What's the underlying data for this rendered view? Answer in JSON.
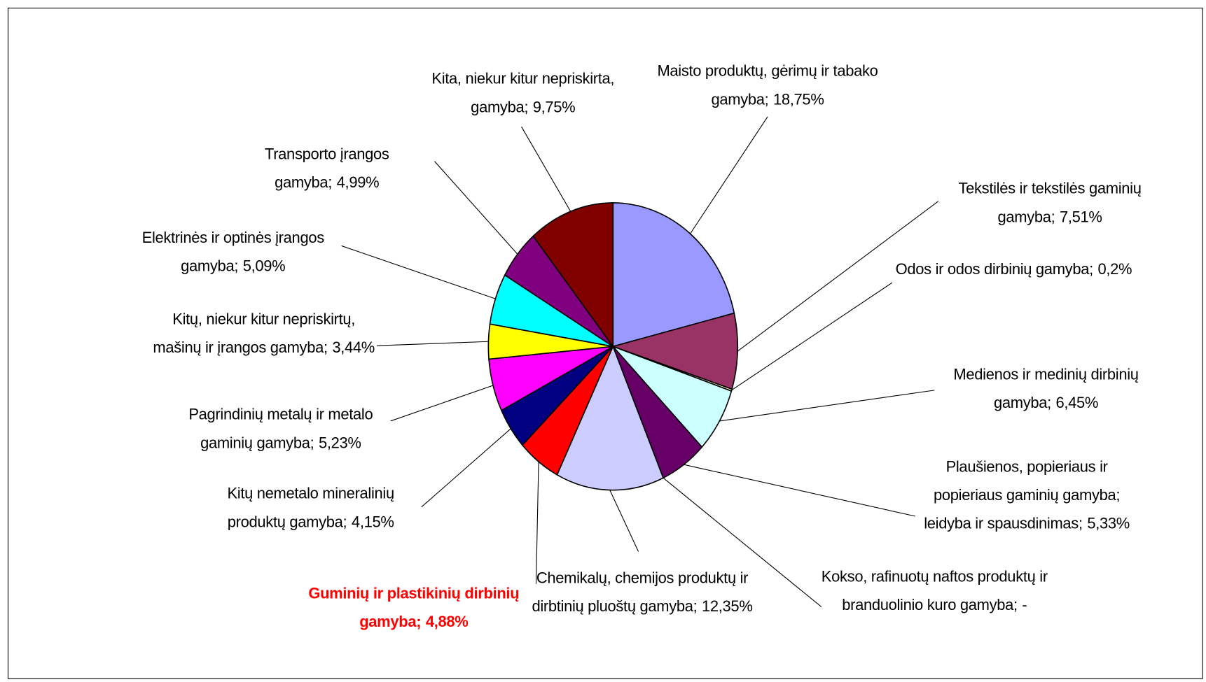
{
  "chart_data": {
    "type": "pie",
    "categories": [
      "Maisto produktų, gėrimų ir tabako gamyba;",
      "Tekstilės ir tekstilės gaminių gamyba;",
      "Odos ir odos dirbinių gamyba;",
      "Medienos ir medinių dirbinių gamyba;",
      "Plaušienos, popieriaus ir popieriaus gaminių gamyba; leidyba ir spausdinimas;",
      "Kokso, rafinuotų naftos produktų ir branduolinio kuro gamyba;",
      "Chemikalų, chemijos produktų ir dirbtinių pluoštų gamyba;",
      "Guminių ir plastikinių dirbinių gamyba;",
      "Kitų nemetalo mineralinių produktų gamyba;",
      "Pagrindinių metalų ir metalo gaminių gamyba;",
      "Kitų, niekur kitur nepriskirtų, mašinų ir įrangos gamyba;",
      "Elektrinės ir optinės įrangos gamyba;",
      "Transporto įrangos gamyba;",
      "Kita, niekur kitur nepriskirta, gamyba;"
    ],
    "values": [
      18.75,
      7.51,
      0.2,
      6.45,
      5.33,
      null,
      12.35,
      4.88,
      4.15,
      5.23,
      3.44,
      5.09,
      4.99,
      9.75
    ],
    "value_labels": [
      "18,75%",
      "7,51%",
      "0,2%",
      "6,45%",
      "5,33%",
      "-",
      "12,35%",
      "4,88%",
      "4,15%",
      "5,23%",
      "3,44%",
      "5,09%",
      "4,99%",
      "9,75%"
    ],
    "colors": [
      "#9999FF",
      "#993366",
      "#FFFFCC",
      "#CCFFFF",
      "#660066",
      "#FF8080",
      "#CCCCFF",
      "#FF0000",
      "#000080",
      "#FF00FF",
      "#FFFF00",
      "#00FFFF",
      "#800080",
      "#800000"
    ],
    "highlight_index": 7,
    "highlight_color": "#FF0000"
  }
}
